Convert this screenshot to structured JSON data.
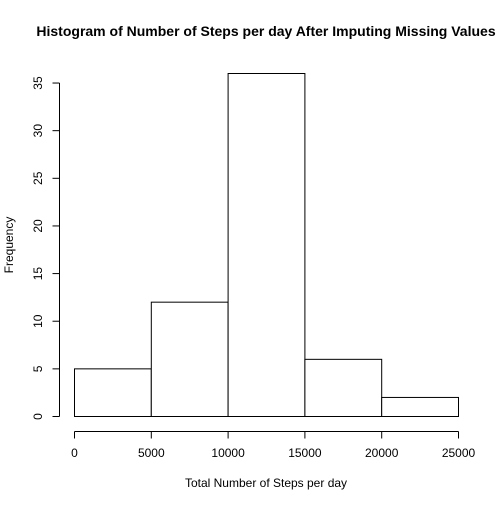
{
  "chart_data": {
    "type": "bar",
    "title": "Histogram of Number of Steps per day After Imputing Missing Values",
    "xlabel": "Total Number of Steps per day",
    "ylabel": "Frequency",
    "bins": [
      {
        "from": 0,
        "to": 5000,
        "count": 5
      },
      {
        "from": 5000,
        "to": 10000,
        "count": 12
      },
      {
        "from": 10000,
        "to": 15000,
        "count": 36
      },
      {
        "from": 15000,
        "to": 20000,
        "count": 6
      },
      {
        "from": 20000,
        "to": 25000,
        "count": 2
      }
    ],
    "xlim": [
      0,
      25000
    ],
    "ylim": [
      0,
      36
    ],
    "x_ticks": [
      0,
      5000,
      10000,
      15000,
      20000,
      25000
    ],
    "x_tick_labels": [
      "0",
      "5000",
      "10000",
      "15000",
      "20000",
      "25000"
    ],
    "y_ticks": [
      0,
      5,
      10,
      15,
      20,
      25,
      30,
      35
    ],
    "y_tick_labels": [
      "0",
      "5",
      "10",
      "15",
      "20",
      "25",
      "30",
      "35"
    ],
    "grid": false,
    "legend": "none",
    "colors": {
      "bar_fill": "#ffffff",
      "bar_stroke": "#000000",
      "axis": "#000000"
    }
  }
}
